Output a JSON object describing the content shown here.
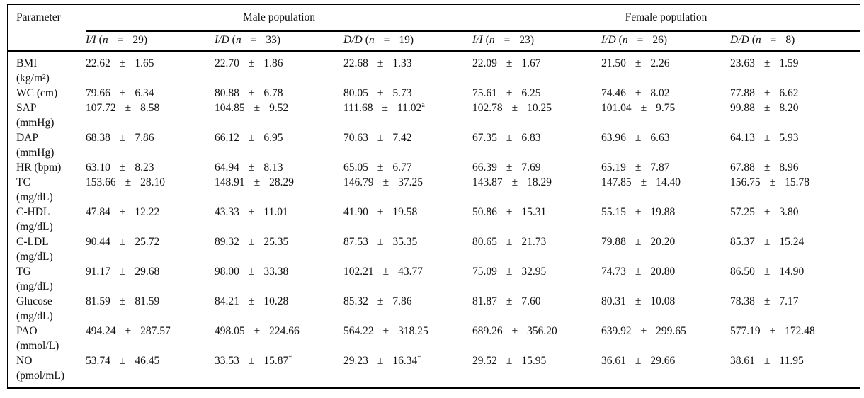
{
  "table": {
    "sym": {
      "pm": "±",
      "open": "(",
      "n": "n",
      "eq": "=",
      "close": ")"
    },
    "param_header": "Parameter",
    "group_headers": [
      "Male population",
      "Female population"
    ],
    "genotype_headers": [
      {
        "genotype": "I/I",
        "count": "29"
      },
      {
        "genotype": "I/D",
        "count": "33"
      },
      {
        "genotype": "D/D",
        "count": "19"
      },
      {
        "genotype": "I/I",
        "count": "23"
      },
      {
        "genotype": "I/D",
        "count": "26"
      },
      {
        "genotype": "D/D",
        "count": "8"
      }
    ],
    "rows": [
      {
        "param": "BMI",
        "unit": "(kg/m²)",
        "cells": [
          {
            "mean": "22.62",
            "sd": "1.65",
            "sup": ""
          },
          {
            "mean": "22.70",
            "sd": "1.86",
            "sup": ""
          },
          {
            "mean": "22.68",
            "sd": "1.33",
            "sup": ""
          },
          {
            "mean": "22.09",
            "sd": "1.67",
            "sup": ""
          },
          {
            "mean": "21.50",
            "sd": "2.26",
            "sup": ""
          },
          {
            "mean": "23.63",
            "sd": "1.59",
            "sup": ""
          }
        ]
      },
      {
        "param": "WC (cm)",
        "unit": "",
        "cells": [
          {
            "mean": "79.66",
            "sd": "6.34",
            "sup": ""
          },
          {
            "mean": "80.88",
            "sd": "6.78",
            "sup": ""
          },
          {
            "mean": "80.05",
            "sd": "5.73",
            "sup": ""
          },
          {
            "mean": "75.61",
            "sd": "6.25",
            "sup": ""
          },
          {
            "mean": "74.46",
            "sd": "8.02",
            "sup": ""
          },
          {
            "mean": "77.88",
            "sd": "6.62",
            "sup": ""
          }
        ]
      },
      {
        "param": "SAP",
        "unit": "(mmHg)",
        "cells": [
          {
            "mean": "107.72",
            "sd": "8.58",
            "sup": ""
          },
          {
            "mean": "104.85",
            "sd": "9.52",
            "sup": ""
          },
          {
            "mean": "111.68",
            "sd": "11.02",
            "sup": "a"
          },
          {
            "mean": "102.78",
            "sd": "10.25",
            "sup": ""
          },
          {
            "mean": "101.04",
            "sd": "9.75",
            "sup": ""
          },
          {
            "mean": "99.88",
            "sd": "8.20",
            "sup": ""
          }
        ]
      },
      {
        "param": "DAP",
        "unit": "(mmHg)",
        "cells": [
          {
            "mean": "68.38",
            "sd": "7.86",
            "sup": ""
          },
          {
            "mean": "66.12",
            "sd": "6.95",
            "sup": ""
          },
          {
            "mean": "70.63",
            "sd": "7.42",
            "sup": ""
          },
          {
            "mean": "67.35",
            "sd": "6.83",
            "sup": ""
          },
          {
            "mean": "63.96",
            "sd": "6.63",
            "sup": ""
          },
          {
            "mean": "64.13",
            "sd": "5.93",
            "sup": ""
          }
        ]
      },
      {
        "param": "HR (bpm)",
        "unit": "",
        "cells": [
          {
            "mean": "63.10",
            "sd": "8.23",
            "sup": ""
          },
          {
            "mean": "64.94",
            "sd": "8.13",
            "sup": ""
          },
          {
            "mean": "65.05",
            "sd": "6.77",
            "sup": ""
          },
          {
            "mean": "66.39",
            "sd": "7.69",
            "sup": ""
          },
          {
            "mean": "65.19",
            "sd": "7.87",
            "sup": ""
          },
          {
            "mean": "67.88",
            "sd": "8.96",
            "sup": ""
          }
        ]
      },
      {
        "param": "TC",
        "unit": "(mg/dL)",
        "cells": [
          {
            "mean": "153.66",
            "sd": "28.10",
            "sup": ""
          },
          {
            "mean": "148.91",
            "sd": "28.29",
            "sup": ""
          },
          {
            "mean": "146.79",
            "sd": "37.25",
            "sup": ""
          },
          {
            "mean": "143.87",
            "sd": "18.29",
            "sup": ""
          },
          {
            "mean": "147.85",
            "sd": "14.40",
            "sup": ""
          },
          {
            "mean": "156.75",
            "sd": "15.78",
            "sup": ""
          }
        ]
      },
      {
        "param": "C-HDL",
        "unit": "(mg/dL)",
        "cells": [
          {
            "mean": "47.84",
            "sd": "12.22",
            "sup": ""
          },
          {
            "mean": "43.33",
            "sd": "11.01",
            "sup": ""
          },
          {
            "mean": "41.90",
            "sd": "19.58",
            "sup": ""
          },
          {
            "mean": "50.86",
            "sd": "15.31",
            "sup": ""
          },
          {
            "mean": "55.15",
            "sd": "19.88",
            "sup": ""
          },
          {
            "mean": "57.25",
            "sd": "3.80",
            "sup": ""
          }
        ]
      },
      {
        "param": "C-LDL",
        "unit": "(mg/dL)",
        "cells": [
          {
            "mean": "90.44",
            "sd": "25.72",
            "sup": ""
          },
          {
            "mean": "89.32",
            "sd": "25.35",
            "sup": ""
          },
          {
            "mean": "87.53",
            "sd": "35.35",
            "sup": ""
          },
          {
            "mean": "80.65",
            "sd": "21.73",
            "sup": ""
          },
          {
            "mean": "79.88",
            "sd": "20.20",
            "sup": ""
          },
          {
            "mean": "85.37",
            "sd": "15.24",
            "sup": ""
          }
        ]
      },
      {
        "param": "TG",
        "unit": "(mg/dL)",
        "cells": [
          {
            "mean": "91.17",
            "sd": "29.68",
            "sup": ""
          },
          {
            "mean": "98.00",
            "sd": "33.38",
            "sup": ""
          },
          {
            "mean": "102.21",
            "sd": "43.77",
            "sup": ""
          },
          {
            "mean": "75.09",
            "sd": "32.95",
            "sup": ""
          },
          {
            "mean": "74.73",
            "sd": "20.80",
            "sup": ""
          },
          {
            "mean": "86.50",
            "sd": "14.90",
            "sup": ""
          }
        ]
      },
      {
        "param": "Glucose",
        "unit": "(mg/dL)",
        "cells": [
          {
            "mean": "81.59",
            "sd": "81.59",
            "sup": ""
          },
          {
            "mean": "84.21",
            "sd": "10.28",
            "sup": ""
          },
          {
            "mean": "85.32",
            "sd": "7.86",
            "sup": ""
          },
          {
            "mean": "81.87",
            "sd": "7.60",
            "sup": ""
          },
          {
            "mean": "80.31",
            "sd": "10.08",
            "sup": ""
          },
          {
            "mean": "78.38",
            "sd": "7.17",
            "sup": ""
          }
        ]
      },
      {
        "param": "PAO",
        "unit": "(mmol/L)",
        "cells": [
          {
            "mean": "494.24",
            "sd": "287.57",
            "sup": ""
          },
          {
            "mean": "498.05",
            "sd": "224.66",
            "sup": ""
          },
          {
            "mean": "564.22",
            "sd": "318.25",
            "sup": ""
          },
          {
            "mean": "689.26",
            "sd": "356.20",
            "sup": ""
          },
          {
            "mean": "639.92",
            "sd": "299.65",
            "sup": ""
          },
          {
            "mean": "577.19",
            "sd": "172.48",
            "sup": ""
          }
        ]
      },
      {
        "param": "NO",
        "unit": "(pmol/mL)",
        "cells": [
          {
            "mean": "53.74",
            "sd": "46.45",
            "sup": ""
          },
          {
            "mean": "33.53",
            "sd": "15.87",
            "sup": "*"
          },
          {
            "mean": "29.23",
            "sd": "16.34",
            "sup": "*"
          },
          {
            "mean": "29.52",
            "sd": "15.95",
            "sup": ""
          },
          {
            "mean": "36.61",
            "sd": "29.66",
            "sup": ""
          },
          {
            "mean": "38.61",
            "sd": "11.95",
            "sup": ""
          }
        ]
      }
    ]
  }
}
